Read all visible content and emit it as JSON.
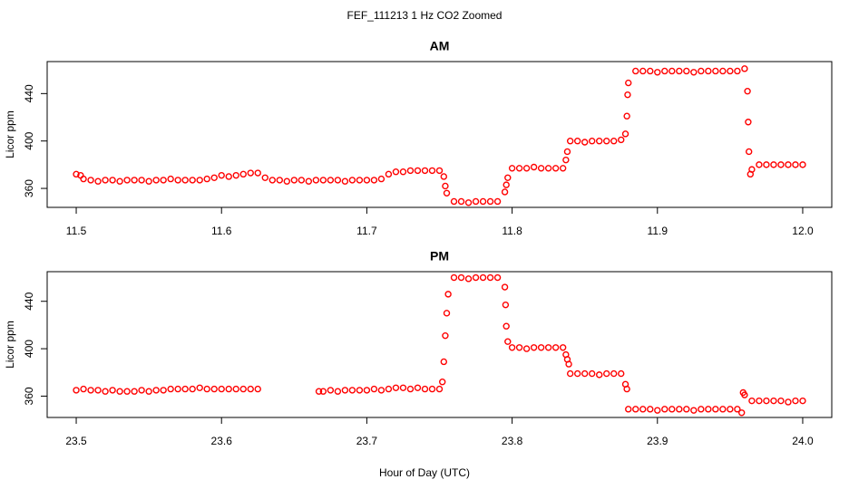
{
  "title": "FEF_111213  1 Hz CO2 Zoomed",
  "xlabel": "Hour of Day (UTC)",
  "chart_data": [
    {
      "type": "scatter",
      "title": "AM",
      "ylabel": "Licor ppm",
      "color": "#ff0000",
      "xlim": [
        11.48,
        12.02
      ],
      "ylim": [
        344,
        467
      ],
      "xticks": [
        11.5,
        11.6,
        11.7,
        11.8,
        11.9,
        {
          "value": 12,
          "label": "12.0"
        }
      ],
      "yticks": [
        360,
        400,
        440
      ],
      "x": [
        11.5,
        11.503,
        11.505,
        11.51,
        11.515,
        11.52,
        11.525,
        11.53,
        11.535,
        11.54,
        11.545,
        11.55,
        11.555,
        11.56,
        11.565,
        11.57,
        11.575,
        11.58,
        11.585,
        11.59,
        11.595,
        11.6,
        11.605,
        11.61,
        11.615,
        11.62,
        11.625,
        11.63,
        11.635,
        11.64,
        11.645,
        11.65,
        11.655,
        11.66,
        11.665,
        11.67,
        11.675,
        11.68,
        11.685,
        11.69,
        11.695,
        11.7,
        11.705,
        11.71,
        11.715,
        11.72,
        11.725,
        11.73,
        11.735,
        11.74,
        11.745,
        11.75,
        11.753,
        11.754,
        11.755,
        11.76,
        11.765,
        11.77,
        11.775,
        11.78,
        11.785,
        11.79,
        11.795,
        11.796,
        11.797,
        11.8,
        11.805,
        11.81,
        11.815,
        11.82,
        11.825,
        11.83,
        11.835,
        11.837,
        11.838,
        11.84,
        11.845,
        11.85,
        11.855,
        11.86,
        11.865,
        11.87,
        11.875,
        11.878,
        11.879,
        11.8795,
        11.88,
        11.885,
        11.89,
        11.895,
        11.9,
        11.905,
        11.91,
        11.915,
        11.92,
        11.925,
        11.93,
        11.935,
        11.94,
        11.945,
        11.95,
        11.955,
        11.96,
        11.962,
        11.9625,
        11.963,
        11.964,
        11.965,
        11.97,
        11.975,
        11.98,
        11.985,
        11.99,
        11.995,
        12.0
      ],
      "values": [
        372,
        371,
        368,
        367,
        366,
        367,
        367,
        366,
        367,
        367,
        367,
        366,
        367,
        367,
        368,
        367,
        367,
        367,
        367,
        368,
        369,
        371,
        370,
        371,
        372,
        373,
        373,
        369,
        367,
        367,
        366,
        367,
        367,
        366,
        367,
        367,
        367,
        367,
        366,
        367,
        367,
        367,
        367,
        368,
        372,
        374,
        374,
        375,
        375,
        375,
        375,
        375,
        370,
        362,
        356,
        349,
        349,
        348,
        349,
        349,
        349,
        349,
        357,
        363,
        369,
        377,
        377,
        377,
        378,
        377,
        377,
        377,
        377,
        384,
        391,
        400,
        400,
        399,
        400,
        400,
        400,
        400,
        401,
        406,
        421,
        439,
        449,
        459,
        459,
        459,
        458,
        459,
        459,
        459,
        459,
        458,
        459,
        459,
        459,
        459,
        459,
        459,
        461,
        442,
        416,
        391,
        372,
        376,
        380,
        380,
        380,
        380,
        380,
        380,
        380
      ]
    },
    {
      "type": "scatter",
      "title": "PM",
      "ylabel": "Licor ppm",
      "color": "#ff0000",
      "xlim": [
        23.48,
        24.02
      ],
      "ylim": [
        342,
        465
      ],
      "xticks": [
        23.5,
        23.6,
        23.7,
        23.8,
        23.9,
        {
          "value": 24,
          "label": "24.0"
        }
      ],
      "yticks": [
        360,
        400,
        440
      ],
      "x": [
        23.5,
        23.505,
        23.51,
        23.515,
        23.52,
        23.525,
        23.53,
        23.535,
        23.54,
        23.545,
        23.55,
        23.555,
        23.56,
        23.565,
        23.57,
        23.575,
        23.58,
        23.585,
        23.59,
        23.595,
        23.6,
        23.605,
        23.61,
        23.615,
        23.62,
        23.625,
        23.667,
        23.67,
        23.675,
        23.68,
        23.685,
        23.69,
        23.695,
        23.7,
        23.705,
        23.71,
        23.715,
        23.72,
        23.725,
        23.73,
        23.735,
        23.74,
        23.745,
        23.75,
        23.752,
        23.753,
        23.754,
        23.755,
        23.756,
        23.76,
        23.765,
        23.77,
        23.775,
        23.78,
        23.785,
        23.79,
        23.795,
        23.7955,
        23.796,
        23.797,
        23.8,
        23.805,
        23.81,
        23.815,
        23.82,
        23.825,
        23.83,
        23.835,
        23.837,
        23.838,
        23.839,
        23.84,
        23.845,
        23.85,
        23.855,
        23.86,
        23.865,
        23.87,
        23.875,
        23.878,
        23.879,
        23.88,
        23.885,
        23.89,
        23.895,
        23.9,
        23.905,
        23.91,
        23.915,
        23.92,
        23.925,
        23.93,
        23.935,
        23.94,
        23.945,
        23.95,
        23.955,
        23.958,
        23.959,
        23.96,
        23.965,
        23.97,
        23.975,
        23.98,
        23.985,
        23.99,
        23.995,
        24.0
      ],
      "values": [
        365,
        366,
        365,
        365,
        364,
        365,
        364,
        364,
        364,
        365,
        364,
        365,
        365,
        366,
        366,
        366,
        366,
        367,
        366,
        366,
        366,
        366,
        366,
        366,
        366,
        366,
        364,
        364,
        365,
        364,
        365,
        365,
        365,
        365,
        366,
        365,
        366,
        367,
        367,
        366,
        367,
        366,
        366,
        366,
        372,
        389,
        411,
        430,
        446,
        460,
        460,
        459,
        460,
        460,
        460,
        460,
        452,
        437,
        419,
        406,
        401,
        401,
        400,
        401,
        401,
        401,
        401,
        401,
        395,
        391,
        387,
        379,
        379,
        379,
        379,
        378,
        379,
        379,
        379,
        370,
        366,
        349,
        349,
        349,
        349,
        348,
        349,
        349,
        349,
        349,
        348,
        349,
        349,
        349,
        349,
        349,
        349,
        346,
        363,
        361,
        356,
        356,
        356,
        356,
        356,
        355,
        356,
        356
      ]
    }
  ]
}
